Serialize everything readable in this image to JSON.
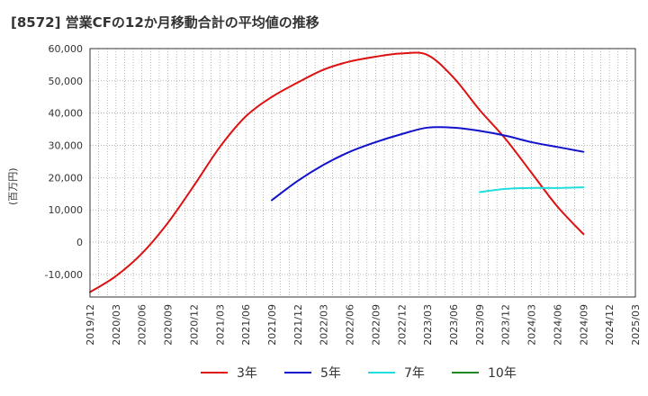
{
  "chart_data": {
    "type": "line",
    "title": "[8572]  営業CFの12か月移動合計の平均値の推移",
    "ylabel": "(百万円)",
    "xlabel": "",
    "ylim": [
      -17000,
      60000
    ],
    "yticks": [
      60000,
      50000,
      40000,
      30000,
      20000,
      10000,
      0,
      -10000
    ],
    "ytick_labels": [
      "60,000",
      "50,000",
      "40,000",
      "30,000",
      "20,000",
      "10,000",
      "0",
      "-10,000"
    ],
    "x_categories": [
      "2019/12",
      "2020/03",
      "2020/06",
      "2020/09",
      "2020/12",
      "2021/03",
      "2021/06",
      "2021/09",
      "2021/12",
      "2022/03",
      "2022/06",
      "2022/09",
      "2022/12",
      "2023/03",
      "2023/06",
      "2023/09",
      "2023/12",
      "2024/03",
      "2024/06",
      "2024/09",
      "2024/12",
      "2025/03"
    ],
    "grid": true,
    "legend_position": "bottom",
    "series": [
      {
        "name": "3年",
        "color": "#dd1111",
        "values": [
          -15500,
          -10500,
          -3500,
          6000,
          17500,
          29500,
          39000,
          45000,
          49500,
          53500,
          56000,
          57500,
          58500,
          58000,
          51000,
          41000,
          32000,
          21500,
          11000,
          2500,
          null,
          null
        ]
      },
      {
        "name": "5年",
        "color": "#1111cc",
        "values": [
          null,
          null,
          null,
          null,
          null,
          null,
          null,
          13000,
          19000,
          24000,
          28000,
          31000,
          33500,
          35500,
          35500,
          34500,
          33000,
          31000,
          29500,
          28000,
          null,
          null
        ]
      },
      {
        "name": "7年",
        "color": "#22dddd",
        "values": [
          null,
          null,
          null,
          null,
          null,
          null,
          null,
          null,
          null,
          null,
          null,
          null,
          null,
          null,
          null,
          15500,
          16500,
          16800,
          16800,
          17000,
          null,
          null
        ]
      },
      {
        "name": "10年",
        "color": "#228822",
        "values": [
          null,
          null,
          null,
          null,
          null,
          null,
          null,
          null,
          null,
          null,
          null,
          null,
          null,
          null,
          null,
          null,
          null,
          null,
          null,
          null,
          null,
          null
        ]
      }
    ]
  }
}
